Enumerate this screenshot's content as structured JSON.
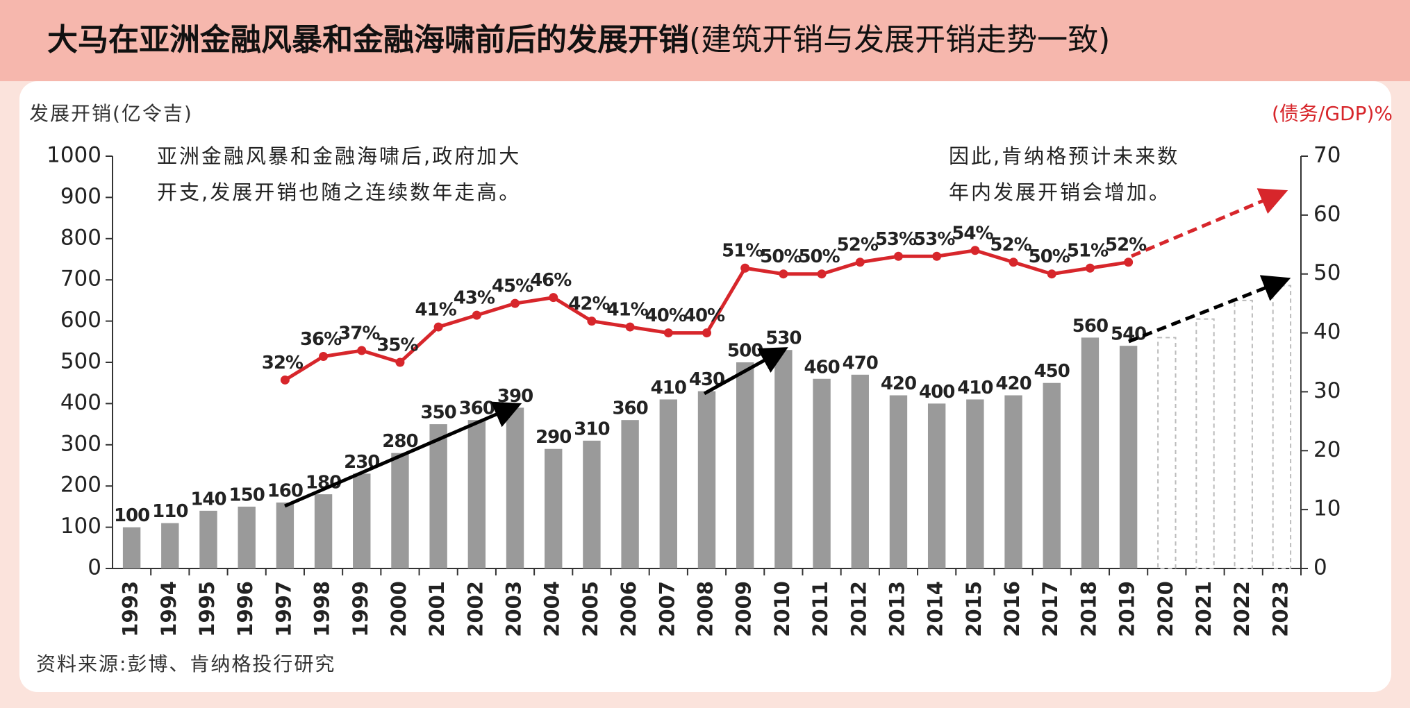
{
  "chart_data": {
    "type": "bar",
    "title": "大马在亚洲金融风暴和金融海啸前后的发展开销",
    "subtitle": "(建筑开销与发展开销走势一致)",
    "y_label": "发展开销(亿令吉)",
    "y2_label": "(债务/GDP)%",
    "annotations": [
      [
        "亚洲金融风暴和金融海啸后,政府加大",
        "开支,发展开销也随之连续数年走高。"
      ],
      [
        "因此,肯纳格预计未来数",
        "年内发展开销会增加。"
      ]
    ],
    "source": "资料来源:彭博、肯纳格投行研究",
    "categories": [
      "1993",
      "1994",
      "1995",
      "1996",
      "1997",
      "1998",
      "1999",
      "2000",
      "2001",
      "2002",
      "2003",
      "2004",
      "2005",
      "2006",
      "2007",
      "2008",
      "2009",
      "2010",
      "2011",
      "2012",
      "2013",
      "2014",
      "2015",
      "2016",
      "2017",
      "2018",
      "2019",
      "2020",
      "2021",
      "2022",
      "2023"
    ],
    "values": [
      100,
      110,
      140,
      150,
      160,
      180,
      230,
      280,
      350,
      360,
      390,
      290,
      310,
      360,
      410,
      430,
      500,
      530,
      460,
      470,
      420,
      400,
      410,
      420,
      450,
      560,
      540,
      null,
      null,
      null,
      null
    ],
    "forecast_values": [
      null,
      null,
      null,
      null,
      null,
      null,
      null,
      null,
      null,
      null,
      null,
      null,
      null,
      null,
      null,
      null,
      null,
      null,
      null,
      null,
      null,
      null,
      null,
      null,
      null,
      null,
      null,
      560,
      605,
      650,
      686
    ],
    "color": "#9a9a9a",
    "line": {
      "axis": "y2",
      "color": "#d7262b",
      "values": [
        null,
        null,
        null,
        null,
        32,
        36,
        37,
        35,
        41,
        43,
        45,
        46,
        42,
        41,
        40,
        40,
        51,
        50,
        50,
        52,
        53,
        53,
        54,
        52,
        50,
        51,
        52,
        null,
        null,
        null,
        null
      ],
      "value_labels": [
        null,
        null,
        null,
        null,
        "32%",
        "36%",
        "37%",
        "35%",
        "41%",
        "43%",
        "45%",
        "46%",
        "42%",
        "41%",
        "40%",
        "40%",
        "51%",
        "50%",
        "50%",
        "52%",
        "53%",
        "53%",
        "54%",
        "52%",
        "50%",
        "51%",
        "52%",
        null,
        null,
        null,
        null
      ]
    },
    "ylim": [
      0,
      1000
    ],
    "yticks": [
      0,
      100,
      200,
      300,
      400,
      500,
      600,
      700,
      800,
      900,
      1000
    ],
    "y2lim": [
      0,
      70
    ],
    "y2ticks": [
      0,
      10,
      20,
      30,
      40,
      50,
      60,
      70
    ]
  }
}
